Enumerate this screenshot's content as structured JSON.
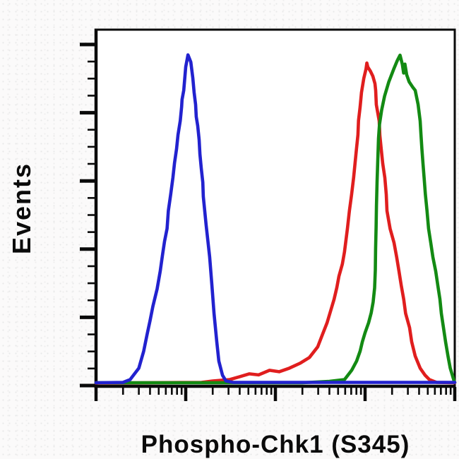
{
  "figure": {
    "page_bg": "#fbfafa",
    "plot_bg": "#ffffff",
    "axis_color": "#0a0a0a",
    "text_color": "#0b0b0b"
  },
  "chart_data": {
    "type": "line",
    "subtype": "flow-cytometry-histogram-overlay",
    "title": "",
    "xlabel": "Phospho-Chk1 (S345)",
    "ylabel": "Events",
    "x_scale": "log10",
    "x_range": [
      1,
      10000
    ],
    "x_decades": 4,
    "x_minor_tick_multiples": [
      2,
      3,
      4,
      5,
      6,
      7,
      8,
      9
    ],
    "y_unit": "percent of max events",
    "y_range": [
      0,
      100
    ],
    "y_major_tick_count": 6,
    "y_minors_per_interval": 3,
    "grid": false,
    "legend_position": "none",
    "series": [
      {
        "name": "red-curve",
        "color": "#e01e1e",
        "points": [
          [
            1,
            0.2
          ],
          [
            15,
            0.4
          ],
          [
            20,
            0.8
          ],
          [
            31,
            1.2
          ],
          [
            40,
            2
          ],
          [
            51,
            2.8
          ],
          [
            65,
            2.5
          ],
          [
            86,
            3.8
          ],
          [
            110,
            3.4
          ],
          [
            143,
            4.4
          ],
          [
            189,
            5.8
          ],
          [
            239,
            7.4
          ],
          [
            296,
            10.4
          ],
          [
            334,
            13.8
          ],
          [
            377,
            17.2
          ],
          [
            411,
            20.4
          ],
          [
            451,
            23.8
          ],
          [
            484,
            27.1
          ],
          [
            511,
            30.3
          ],
          [
            558,
            33.7
          ],
          [
            589,
            37.1
          ],
          [
            635,
            43.7
          ],
          [
            669,
            48.7
          ],
          [
            707,
            53.3
          ],
          [
            745,
            58.1
          ],
          [
            773,
            62.1
          ],
          [
            802,
            66.1
          ],
          [
            832,
            70.1
          ],
          [
            845,
            74.1
          ],
          [
            881,
            78
          ],
          [
            912,
            82
          ],
          [
            968,
            86
          ],
          [
            1023,
            88.6
          ],
          [
            1047,
            90.3
          ],
          [
            1072,
            89.2
          ],
          [
            1148,
            88
          ],
          [
            1221,
            86.6
          ],
          [
            1290,
            84.5
          ],
          [
            1312,
            82.6
          ],
          [
            1334,
            78.6
          ],
          [
            1436,
            74
          ],
          [
            1462,
            70
          ],
          [
            1516,
            66
          ],
          [
            1574,
            62
          ],
          [
            1660,
            58
          ],
          [
            1723,
            53.3
          ],
          [
            1754,
            48.7
          ],
          [
            1900,
            43.7
          ],
          [
            2104,
            39.7
          ],
          [
            2249,
            35.7
          ],
          [
            2388,
            31.7
          ],
          [
            2529,
            27.7
          ],
          [
            2698,
            23.8
          ],
          [
            2831,
            19.8
          ],
          [
            3133,
            15.8
          ],
          [
            3311,
            11.8
          ],
          [
            3622,
            7.8
          ],
          [
            4113,
            4.4
          ],
          [
            4670,
            2.4
          ],
          [
            5208,
            1.2
          ],
          [
            6259,
            0.4
          ],
          [
            10000,
            0.3
          ]
        ]
      },
      {
        "name": "green-curve",
        "color": "#138a13",
        "points": [
          [
            1,
            0.3
          ],
          [
            200,
            0.3
          ],
          [
            400,
            0.7
          ],
          [
            590,
            1.2
          ],
          [
            708,
            3.8
          ],
          [
            805,
            6.4
          ],
          [
            881,
            9.2
          ],
          [
            931,
            11.8
          ],
          [
            1000,
            14.4
          ],
          [
            1094,
            17.2
          ],
          [
            1170,
            20
          ],
          [
            1230,
            23
          ],
          [
            1278,
            27
          ],
          [
            1300,
            32
          ],
          [
            1310,
            38
          ],
          [
            1326,
            44
          ],
          [
            1340,
            50
          ],
          [
            1360,
            57
          ],
          [
            1385,
            63
          ],
          [
            1410,
            69
          ],
          [
            1447,
            73
          ],
          [
            1528,
            77
          ],
          [
            1650,
            81
          ],
          [
            1840,
            85
          ],
          [
            2080,
            88.5
          ],
          [
            2285,
            91
          ],
          [
            2455,
            92.5
          ],
          [
            2600,
            90
          ],
          [
            2690,
            87.5
          ],
          [
            2780,
            90
          ],
          [
            2910,
            87
          ],
          [
            3100,
            85
          ],
          [
            3400,
            83.5
          ],
          [
            3622,
            82.6
          ],
          [
            3899,
            78.6
          ],
          [
            4113,
            74
          ],
          [
            4200,
            70
          ],
          [
            4300,
            66
          ],
          [
            4420,
            62
          ],
          [
            4550,
            58
          ],
          [
            4700,
            53.3
          ],
          [
            4900,
            48.7
          ],
          [
            5100,
            43.7
          ],
          [
            5397,
            39.7
          ],
          [
            5702,
            35.7
          ],
          [
            6124,
            31.7
          ],
          [
            6473,
            27.7
          ],
          [
            6834,
            23.8
          ],
          [
            7080,
            19.8
          ],
          [
            7482,
            15.8
          ],
          [
            7900,
            11.8
          ],
          [
            8400,
            7.8
          ],
          [
            8900,
            4.4
          ],
          [
            9400,
            2.4
          ],
          [
            9817,
            0.8
          ],
          [
            10000,
            0.4
          ]
        ]
      },
      {
        "name": "blue-curve",
        "color": "#2222cf",
        "points": [
          [
            1,
            0.3
          ],
          [
            2,
            0.4
          ],
          [
            2.4,
            1.2
          ],
          [
            3,
            4.4
          ],
          [
            3.4,
            9.2
          ],
          [
            3.7,
            13.8
          ],
          [
            4,
            17.8
          ],
          [
            4.3,
            21.8
          ],
          [
            4.8,
            26.7
          ],
          [
            5.2,
            31.7
          ],
          [
            5.5,
            36.1
          ],
          [
            5.8,
            40.1
          ],
          [
            6.2,
            43.7
          ],
          [
            6.4,
            48.7
          ],
          [
            6.8,
            53.3
          ],
          [
            7.2,
            58.1
          ],
          [
            7.5,
            62.1
          ],
          [
            7.9,
            66.1
          ],
          [
            8.2,
            70.1
          ],
          [
            8.7,
            74.1
          ],
          [
            9,
            78
          ],
          [
            9.1,
            80
          ],
          [
            9.5,
            82.6
          ],
          [
            9.8,
            86.6
          ],
          [
            10,
            89.2
          ],
          [
            10.6,
            92.6
          ],
          [
            11.4,
            90.6
          ],
          [
            12,
            86
          ],
          [
            12.4,
            82
          ],
          [
            12.9,
            78.6
          ],
          [
            13.1,
            75.2
          ],
          [
            13.6,
            72.6
          ],
          [
            14.1,
            68.7
          ],
          [
            14.4,
            64.7
          ],
          [
            14.9,
            60.7
          ],
          [
            15.5,
            56.7
          ],
          [
            15.7,
            52.7
          ],
          [
            16.3,
            48.7
          ],
          [
            16.9,
            44.7
          ],
          [
            18.5,
            35.7
          ],
          [
            19.6,
            27.7
          ],
          [
            20.7,
            19.8
          ],
          [
            22.2,
            11.8
          ],
          [
            23.4,
            6.4
          ],
          [
            25.7,
            2.4
          ],
          [
            28.1,
            0.8
          ],
          [
            33.7,
            0.4
          ],
          [
            100,
            0.4
          ],
          [
            1000,
            0.4
          ],
          [
            10000,
            0.4
          ]
        ]
      }
    ]
  }
}
